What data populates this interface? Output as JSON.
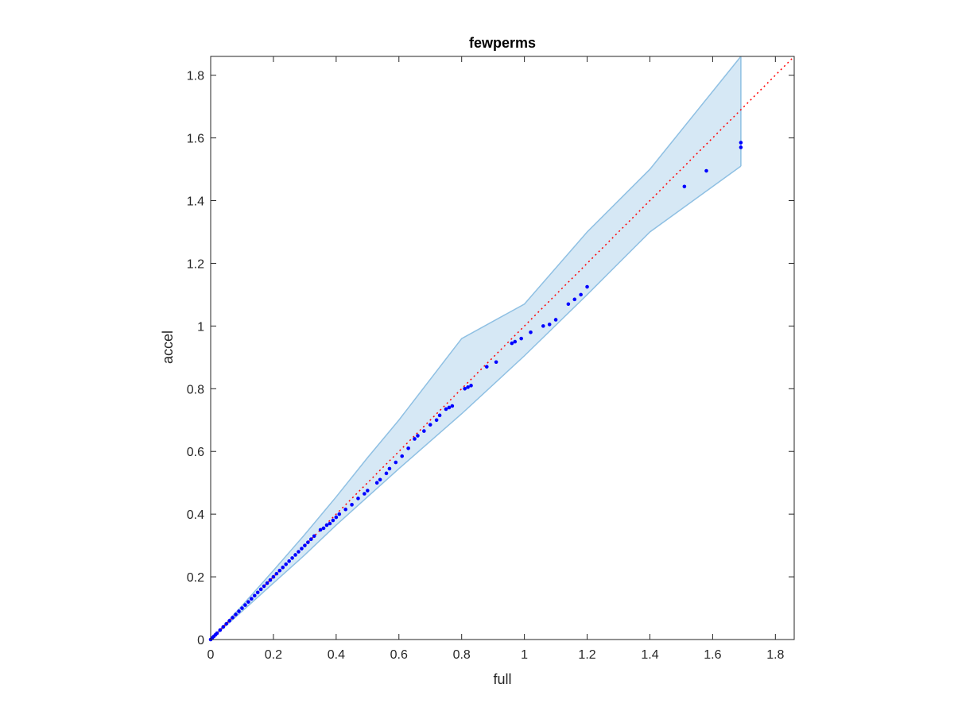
{
  "chart_data": {
    "type": "scatter",
    "title": "fewperms",
    "xlabel": "full",
    "ylabel": "accel",
    "xlim": [
      0,
      1.86
    ],
    "ylim": [
      0,
      1.86
    ],
    "xticks": [
      "0",
      "0.2",
      "0.4",
      "0.6",
      "0.8",
      "1",
      "1.2",
      "1.4",
      "1.6",
      "1.8"
    ],
    "yticks": [
      "0",
      "0.2",
      "0.4",
      "0.6",
      "0.8",
      "1",
      "1.2",
      "1.4",
      "1.6",
      "1.8"
    ],
    "grid": false,
    "legend": "none",
    "reference_line": {
      "style": "dotted",
      "color": "#ff0000",
      "from": [
        0,
        0
      ],
      "to": [
        1.86,
        1.86
      ]
    },
    "confidence_band": {
      "color": "#a6cee3",
      "upper": [
        [
          0,
          0
        ],
        [
          0.1,
          0.108
        ],
        [
          0.2,
          0.22
        ],
        [
          0.3,
          0.335
        ],
        [
          0.4,
          0.455
        ],
        [
          0.5,
          0.58
        ],
        [
          0.6,
          0.7
        ],
        [
          0.8,
          0.96
        ],
        [
          1.0,
          1.07
        ],
        [
          1.2,
          1.3
        ],
        [
          1.4,
          1.5
        ],
        [
          1.69,
          1.86
        ]
      ],
      "lower": [
        [
          0,
          0
        ],
        [
          0.1,
          0.09
        ],
        [
          0.2,
          0.18
        ],
        [
          0.3,
          0.27
        ],
        [
          0.4,
          0.365
        ],
        [
          0.5,
          0.455
        ],
        [
          0.6,
          0.545
        ],
        [
          0.8,
          0.72
        ],
        [
          1.0,
          0.905
        ],
        [
          1.2,
          1.1
        ],
        [
          1.4,
          1.3
        ],
        [
          1.69,
          1.51
        ]
      ]
    },
    "series": [
      {
        "color": "#0000ff",
        "points": [
          [
            0,
            0
          ],
          [
            0.005,
            0.005
          ],
          [
            0.01,
            0.01
          ],
          [
            0.015,
            0.015
          ],
          [
            0.02,
            0.02
          ],
          [
            0.03,
            0.03
          ],
          [
            0.04,
            0.04
          ],
          [
            0.05,
            0.05
          ],
          [
            0.06,
            0.06
          ],
          [
            0.07,
            0.07
          ],
          [
            0.08,
            0.08
          ],
          [
            0.09,
            0.09
          ],
          [
            0.1,
            0.1
          ],
          [
            0.11,
            0.11
          ],
          [
            0.12,
            0.12
          ],
          [
            0.13,
            0.13
          ],
          [
            0.14,
            0.14
          ],
          [
            0.15,
            0.15
          ],
          [
            0.16,
            0.16
          ],
          [
            0.17,
            0.17
          ],
          [
            0.18,
            0.18
          ],
          [
            0.19,
            0.19
          ],
          [
            0.2,
            0.2
          ],
          [
            0.21,
            0.21
          ],
          [
            0.22,
            0.22
          ],
          [
            0.23,
            0.23
          ],
          [
            0.24,
            0.24
          ],
          [
            0.25,
            0.25
          ],
          [
            0.26,
            0.26
          ],
          [
            0.27,
            0.27
          ],
          [
            0.28,
            0.28
          ],
          [
            0.29,
            0.29
          ],
          [
            0.3,
            0.3
          ],
          [
            0.31,
            0.31
          ],
          [
            0.32,
            0.32
          ],
          [
            0.33,
            0.33
          ],
          [
            0.35,
            0.35
          ],
          [
            0.36,
            0.355
          ],
          [
            0.37,
            0.365
          ],
          [
            0.38,
            0.37
          ],
          [
            0.39,
            0.38
          ],
          [
            0.4,
            0.39
          ],
          [
            0.41,
            0.4
          ],
          [
            0.43,
            0.415
          ],
          [
            0.45,
            0.43
          ],
          [
            0.47,
            0.45
          ],
          [
            0.49,
            0.465
          ],
          [
            0.5,
            0.475
          ],
          [
            0.53,
            0.5
          ],
          [
            0.54,
            0.51
          ],
          [
            0.56,
            0.53
          ],
          [
            0.57,
            0.545
          ],
          [
            0.59,
            0.565
          ],
          [
            0.61,
            0.585
          ],
          [
            0.63,
            0.61
          ],
          [
            0.65,
            0.64
          ],
          [
            0.66,
            0.65
          ],
          [
            0.68,
            0.665
          ],
          [
            0.7,
            0.685
          ],
          [
            0.72,
            0.7
          ],
          [
            0.73,
            0.715
          ],
          [
            0.75,
            0.735
          ],
          [
            0.76,
            0.74
          ],
          [
            0.77,
            0.745
          ],
          [
            0.81,
            0.8
          ],
          [
            0.82,
            0.805
          ],
          [
            0.83,
            0.81
          ],
          [
            0.88,
            0.87
          ],
          [
            0.91,
            0.885
          ],
          [
            0.96,
            0.945
          ],
          [
            0.97,
            0.95
          ],
          [
            0.99,
            0.96
          ],
          [
            1.02,
            0.98
          ],
          [
            1.06,
            1.0
          ],
          [
            1.08,
            1.005
          ],
          [
            1.1,
            1.02
          ],
          [
            1.14,
            1.07
          ],
          [
            1.16,
            1.085
          ],
          [
            1.18,
            1.1
          ],
          [
            1.2,
            1.125
          ],
          [
            1.51,
            1.445
          ],
          [
            1.58,
            1.495
          ],
          [
            1.69,
            1.57
          ],
          [
            1.69,
            1.585
          ]
        ]
      }
    ]
  }
}
